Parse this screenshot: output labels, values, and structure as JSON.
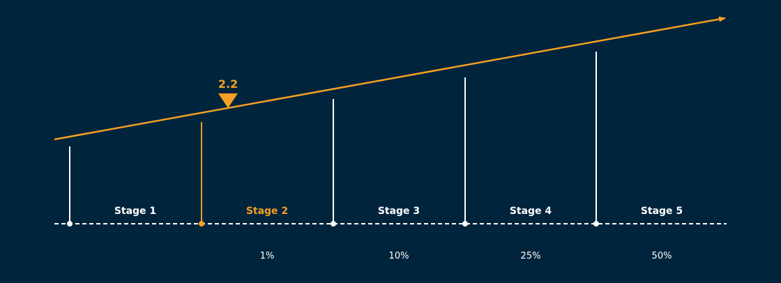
{
  "colors": {
    "background": "#00243c",
    "accent": "#f5a023",
    "line": "#ffffff",
    "text": "#ffffff"
  },
  "marker": {
    "label": "2.2"
  },
  "stages": [
    {
      "label": "Stage 1",
      "percent": "",
      "highlighted": false
    },
    {
      "label": "Stage 2",
      "percent": "1%",
      "highlighted": true
    },
    {
      "label": "Stage 3",
      "percent": "10%",
      "highlighted": false
    },
    {
      "label": "Stage 4",
      "percent": "25%",
      "highlighted": false
    },
    {
      "label": "Stage 5",
      "percent": "50%",
      "highlighted": false
    }
  ]
}
